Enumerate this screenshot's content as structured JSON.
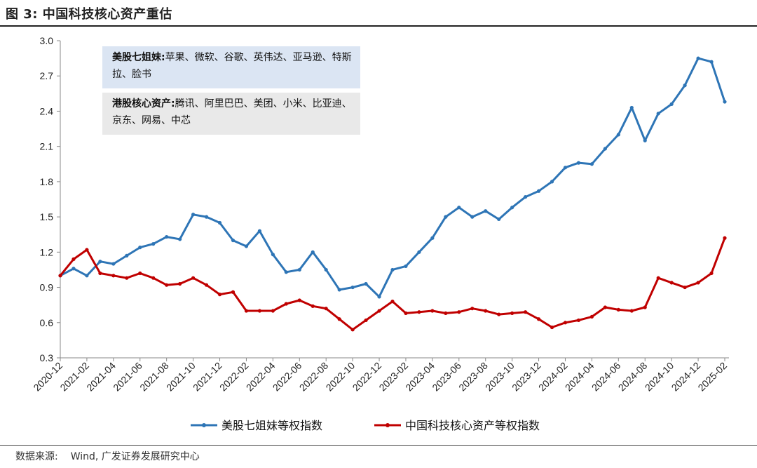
{
  "title": "图 3: 中国科技核心资产重估",
  "notes": [
    {
      "label": "美股七姐妹:",
      "text": "苹果、微软、谷歌、英伟达、亚马逊、特斯拉、脸书",
      "bg": "#dbe5f3"
    },
    {
      "label": "港股核心资产:",
      "text": "腾讯、阿里巴巴、美团、小米、比亚迪、京东、网易、中芯",
      "bg": "#e9e9e9"
    }
  ],
  "source": {
    "label": "数据来源:",
    "text": "Wind, 广发证券发展研究中心"
  },
  "chart_data": {
    "type": "line",
    "title": "",
    "xlabel": "",
    "ylabel": "",
    "ylim": [
      0.3,
      3.0
    ],
    "yticks": [
      "0.3",
      "0.6",
      "0.9",
      "1.2",
      "1.5",
      "1.8",
      "2.1",
      "2.4",
      "2.7",
      "3.0"
    ],
    "xticks": [
      "2020-12",
      "2021-02",
      "2021-04",
      "2021-06",
      "2021-08",
      "2021-10",
      "2021-12",
      "2022-02",
      "2022-04",
      "2022-06",
      "2022-08",
      "2022-10",
      "2022-12",
      "2023-02",
      "2023-04",
      "2023-06",
      "2023-08",
      "2023-10",
      "2023-12",
      "2024-02",
      "2024-04",
      "2024-06",
      "2024-08",
      "2024-10",
      "2024-12",
      "2025-02"
    ],
    "grid": false,
    "legend": "bottom",
    "series": [
      {
        "name": "美股七姐妹等权指数",
        "color": "#2e75b6",
        "x": [
          "2020-12",
          "2021-01",
          "2021-02",
          "2021-03",
          "2021-04",
          "2021-05",
          "2021-06",
          "2021-07",
          "2021-08",
          "2021-09",
          "2021-10",
          "2021-11",
          "2021-12",
          "2022-01",
          "2022-02",
          "2022-03",
          "2022-04",
          "2022-05",
          "2022-06",
          "2022-07",
          "2022-08",
          "2022-09",
          "2022-10",
          "2022-11",
          "2022-12",
          "2023-01",
          "2023-02",
          "2023-03",
          "2023-04",
          "2023-05",
          "2023-06",
          "2023-07",
          "2023-08",
          "2023-09",
          "2023-10",
          "2023-11",
          "2023-12",
          "2024-01",
          "2024-02",
          "2024-03",
          "2024-04",
          "2024-05",
          "2024-06",
          "2024-07",
          "2024-08",
          "2024-09",
          "2024-10",
          "2024-11",
          "2024-12",
          "2025-01",
          "2025-02"
        ],
        "values": [
          1.0,
          1.06,
          1.0,
          1.12,
          1.1,
          1.17,
          1.24,
          1.27,
          1.33,
          1.31,
          1.52,
          1.5,
          1.45,
          1.3,
          1.25,
          1.38,
          1.18,
          1.03,
          1.05,
          1.2,
          1.05,
          0.88,
          0.9,
          0.93,
          0.82,
          1.05,
          1.08,
          1.2,
          1.32,
          1.5,
          1.58,
          1.5,
          1.55,
          1.48,
          1.58,
          1.67,
          1.72,
          1.8,
          1.92,
          1.96,
          1.95,
          2.08,
          2.2,
          2.43,
          2.15,
          2.38,
          2.46,
          2.62,
          2.85,
          2.82,
          2.48
        ]
      },
      {
        "name": "中国科技核心资产等权指数",
        "color": "#c00000",
        "x": [
          "2020-12",
          "2021-01",
          "2021-02",
          "2021-03",
          "2021-04",
          "2021-05",
          "2021-06",
          "2021-07",
          "2021-08",
          "2021-09",
          "2021-10",
          "2021-11",
          "2021-12",
          "2022-01",
          "2022-02",
          "2022-03",
          "2022-04",
          "2022-05",
          "2022-06",
          "2022-07",
          "2022-08",
          "2022-09",
          "2022-10",
          "2022-11",
          "2022-12",
          "2023-01",
          "2023-02",
          "2023-03",
          "2023-04",
          "2023-05",
          "2023-06",
          "2023-07",
          "2023-08",
          "2023-09",
          "2023-10",
          "2023-11",
          "2023-12",
          "2024-01",
          "2024-02",
          "2024-03",
          "2024-04",
          "2024-05",
          "2024-06",
          "2024-07",
          "2024-08",
          "2024-09",
          "2024-10",
          "2024-11",
          "2024-12",
          "2025-01",
          "2025-02"
        ],
        "values": [
          1.0,
          1.14,
          1.22,
          1.02,
          1.0,
          0.98,
          1.02,
          0.98,
          0.92,
          0.93,
          0.98,
          0.92,
          0.84,
          0.86,
          0.7,
          0.7,
          0.7,
          0.76,
          0.79,
          0.74,
          0.72,
          0.63,
          0.54,
          0.62,
          0.7,
          0.78,
          0.68,
          0.69,
          0.7,
          0.68,
          0.69,
          0.72,
          0.7,
          0.67,
          0.68,
          0.69,
          0.63,
          0.56,
          0.6,
          0.62,
          0.65,
          0.73,
          0.71,
          0.7,
          0.73,
          0.98,
          0.94,
          0.9,
          0.94,
          1.02,
          1.32
        ]
      }
    ]
  }
}
